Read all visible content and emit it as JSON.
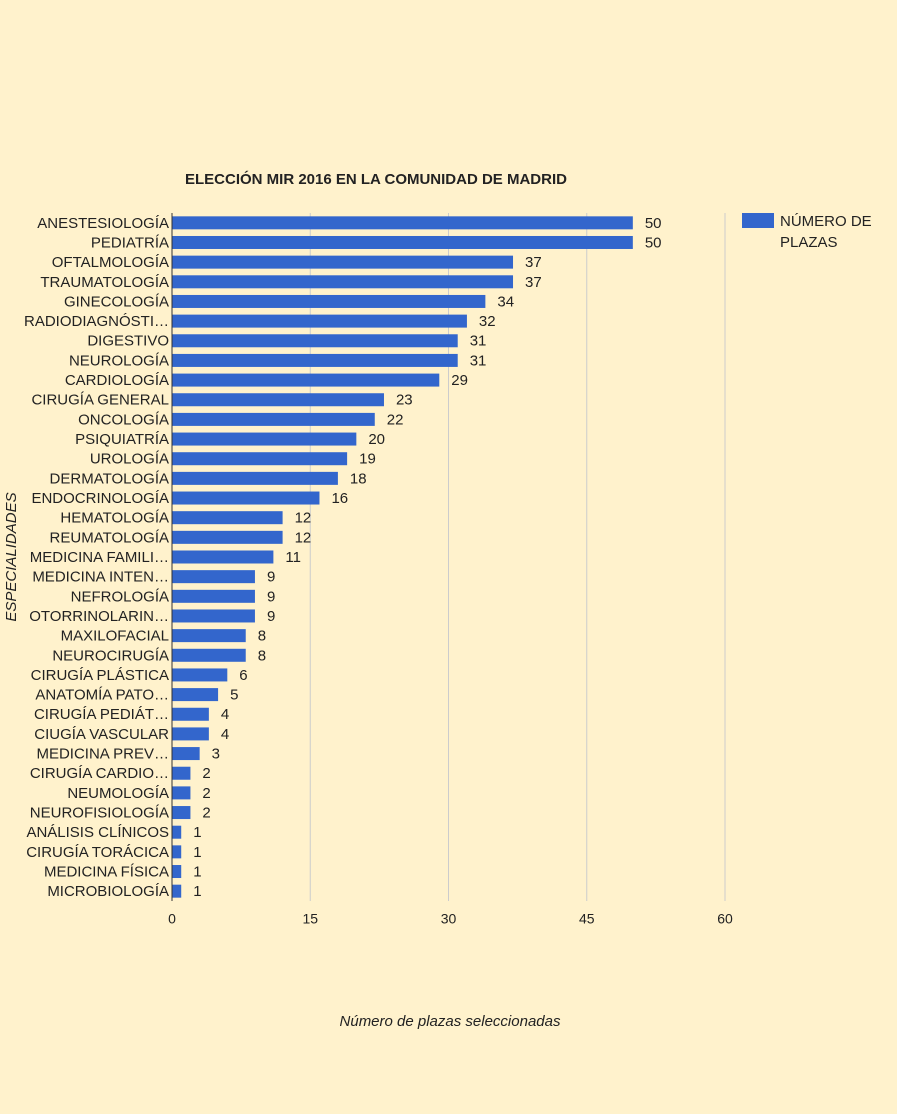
{
  "chart_data": {
    "type": "bar",
    "orientation": "horizontal",
    "title": "ELECCIÓN MIR 2016 EN LA COMUNIDAD DE MADRID",
    "x_label": "Número de plazas seleccionadas",
    "y_label": "ESPECIALIDADES",
    "categories": [
      "ANESTESIOLOGÍA",
      "PEDIATRÍA",
      "OFTALMOLOGÍA",
      "TRAUMATOLOGÍA",
      "GINECOLOGÍA",
      "RADIODIAGNÓSTI…",
      "DIGESTIVO",
      "NEUROLOGÍA",
      "CARDIOLOGÍA",
      "CIRUGÍA GENERAL",
      "ONCOLOGÍA",
      "PSIQUIATRÍA",
      "UROLOGÍA",
      "DERMATOLOGÍA",
      "ENDOCRINOLOGÍA",
      "HEMATOLOGÍA",
      "REUMATOLOGÍA",
      "MEDICINA FAMILI…",
      "MEDICINA INTEN…",
      "NEFROLOGÍA",
      "OTORRINOLARIN…",
      "MAXILOFACIAL",
      "NEUROCIRUGÍA",
      "CIRUGÍA PLÁSTICA",
      "ANATOMÍA PATO…",
      "CIRUGÍA PEDIÁT…",
      "CIUGÍA VASCULAR",
      "MEDICINA PREV…",
      "CIRUGÍA CARDIO…",
      "NEUMOLOGÍA",
      "NEUROFISIOLOGÍA",
      "ANÁLISIS CLÍNICOS",
      "CIRUGÍA TORÁCICA",
      "MEDICINA FÍSICA",
      "MICROBIOLOGÍA"
    ],
    "series": [
      {
        "name": "NÚMERO DE PLAZAS",
        "color": "#3366cc",
        "values": [
          50,
          50,
          37,
          37,
          34,
          32,
          31,
          31,
          29,
          23,
          22,
          20,
          19,
          18,
          16,
          12,
          12,
          11,
          9,
          9,
          9,
          8,
          8,
          6,
          5,
          4,
          4,
          3,
          2,
          2,
          2,
          1,
          1,
          1,
          1
        ]
      }
    ],
    "xlim": [
      0,
      60
    ],
    "xticks": [
      0,
      15,
      30,
      45,
      60
    ],
    "grid": true,
    "legend": "right"
  }
}
